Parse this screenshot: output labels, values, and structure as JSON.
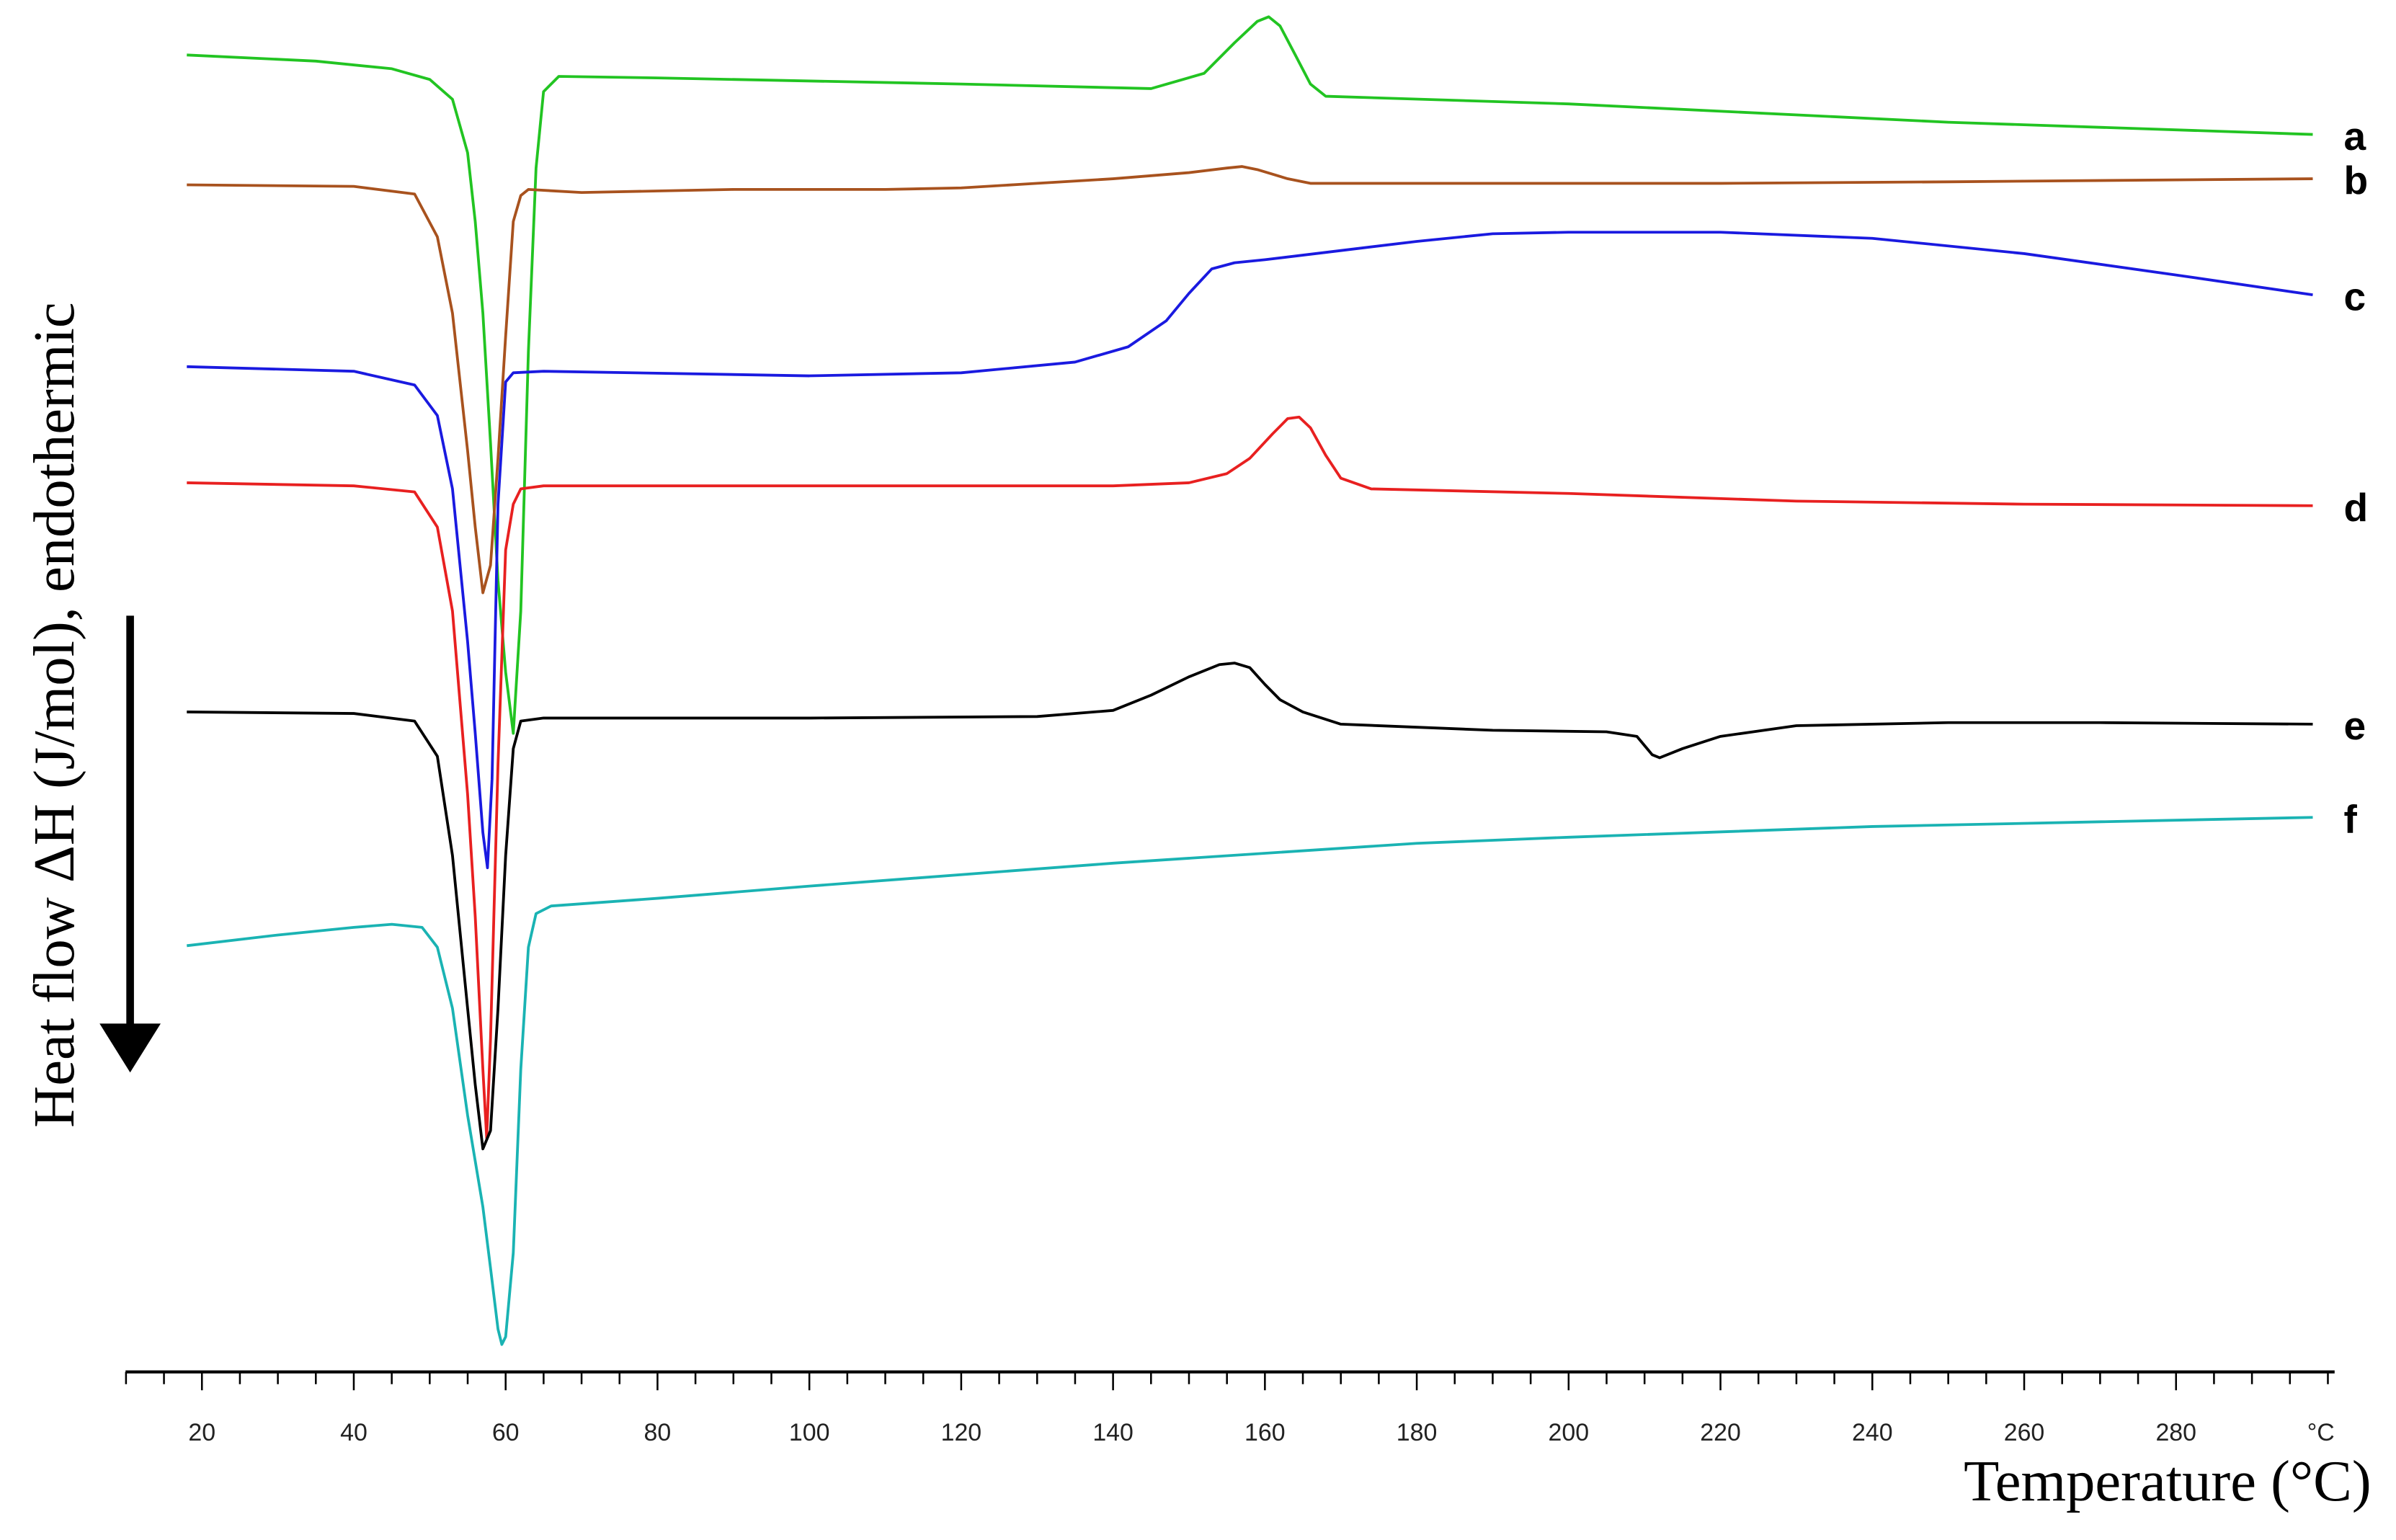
{
  "chart_data": {
    "type": "line",
    "xlabel": "Temperature (°C)",
    "ylabel": "Heat flow ΔH (J/mol), endothermic",
    "x_unit_tick_label": "°C",
    "xlim": [
      10,
      300
    ],
    "x_ticks": [
      20,
      40,
      60,
      80,
      100,
      120,
      140,
      160,
      180,
      200,
      220,
      240,
      260,
      280
    ],
    "grid": false,
    "legend": "none (curves labelled at right end)",
    "y_direction_arrow": "down",
    "series": [
      {
        "name": "a",
        "color": "#22c422",
        "points": [
          [
            18,
            36
          ],
          [
            35,
            40
          ],
          [
            45,
            45
          ],
          [
            50,
            52
          ],
          [
            53,
            65
          ],
          [
            55,
            100
          ],
          [
            56,
            145
          ],
          [
            57,
            205
          ],
          [
            58,
            290
          ],
          [
            59,
            380
          ],
          [
            60,
            440
          ],
          [
            61,
            480
          ],
          [
            62,
            400
          ],
          [
            63,
            230
          ],
          [
            64,
            110
          ],
          [
            65,
            60
          ],
          [
            67,
            50
          ],
          [
            80,
            51
          ],
          [
            120,
            55
          ],
          [
            145,
            58
          ],
          [
            152,
            48
          ],
          [
            156,
            28
          ],
          [
            159,
            14
          ],
          [
            160.5,
            11
          ],
          [
            162,
            17
          ],
          [
            164,
            36
          ],
          [
            166,
            55
          ],
          [
            168,
            63
          ],
          [
            200,
            68
          ],
          [
            250,
            80
          ],
          [
            298,
            88
          ]
        ]
      },
      {
        "name": "b",
        "color": "#a8521e",
        "points": [
          [
            18,
            121
          ],
          [
            40,
            122
          ],
          [
            48,
            127
          ],
          [
            51,
            155
          ],
          [
            53,
            205
          ],
          [
            55,
            295
          ],
          [
            56,
            345
          ],
          [
            57,
            388
          ],
          [
            58,
            370
          ],
          [
            59,
            300
          ],
          [
            60,
            220
          ],
          [
            61,
            145
          ],
          [
            62,
            128
          ],
          [
            63,
            124
          ],
          [
            70,
            126
          ],
          [
            80,
            125
          ],
          [
            90,
            124
          ],
          [
            100,
            124
          ],
          [
            110,
            124
          ],
          [
            120,
            123
          ],
          [
            130,
            120
          ],
          [
            140,
            117
          ],
          [
            150,
            113
          ],
          [
            155,
            110
          ],
          [
            157,
            109
          ],
          [
            159,
            111
          ],
          [
            161,
            114
          ],
          [
            163,
            117
          ],
          [
            166,
            120
          ],
          [
            180,
            120
          ],
          [
            200,
            120
          ],
          [
            220,
            120
          ],
          [
            250,
            119
          ],
          [
            298,
            117
          ]
        ]
      },
      {
        "name": "c",
        "color": "#1a1ae0",
        "points": [
          [
            18,
            240
          ],
          [
            40,
            243
          ],
          [
            48,
            252
          ],
          [
            51,
            272
          ],
          [
            53,
            320
          ],
          [
            55,
            420
          ],
          [
            56,
            480
          ],
          [
            57,
            545
          ],
          [
            57.6,
            568
          ],
          [
            58.2,
            510
          ],
          [
            59,
            330
          ],
          [
            60,
            250
          ],
          [
            61,
            244
          ],
          [
            65,
            243
          ],
          [
            100,
            246
          ],
          [
            120,
            244
          ],
          [
            135,
            237
          ],
          [
            142,
            227
          ],
          [
            147,
            210
          ],
          [
            150,
            192
          ],
          [
            153,
            176
          ],
          [
            156,
            172
          ],
          [
            160,
            170
          ],
          [
            170,
            164
          ],
          [
            180,
            158
          ],
          [
            190,
            153
          ],
          [
            200,
            152
          ],
          [
            220,
            152
          ],
          [
            240,
            156
          ],
          [
            260,
            166
          ],
          [
            280,
            180
          ],
          [
            298,
            193
          ]
        ]
      },
      {
        "name": "d",
        "color": "#e82020",
        "points": [
          [
            18,
            316
          ],
          [
            40,
            318
          ],
          [
            48,
            322
          ],
          [
            51,
            345
          ],
          [
            53,
            400
          ],
          [
            55,
            520
          ],
          [
            56,
            600
          ],
          [
            57,
            700
          ],
          [
            57.5,
            745
          ],
          [
            58,
            680
          ],
          [
            59,
            500
          ],
          [
            60,
            360
          ],
          [
            61,
            330
          ],
          [
            62,
            320
          ],
          [
            65,
            318
          ],
          [
            100,
            318
          ],
          [
            140,
            318
          ],
          [
            150,
            316
          ],
          [
            155,
            310
          ],
          [
            158,
            300
          ],
          [
            161,
            284
          ],
          [
            163,
            274
          ],
          [
            164.5,
            273
          ],
          [
            166,
            280
          ],
          [
            168,
            298
          ],
          [
            170,
            313
          ],
          [
            174,
            320
          ],
          [
            200,
            323
          ],
          [
            230,
            328
          ],
          [
            260,
            330
          ],
          [
            298,
            331
          ]
        ]
      },
      {
        "name": "e",
        "color": "#000000",
        "points": [
          [
            18,
            466
          ],
          [
            40,
            467
          ],
          [
            48,
            472
          ],
          [
            51,
            495
          ],
          [
            53,
            560
          ],
          [
            55,
            660
          ],
          [
            56,
            710
          ],
          [
            57,
            752
          ],
          [
            58,
            740
          ],
          [
            59,
            660
          ],
          [
            60,
            560
          ],
          [
            61,
            490
          ],
          [
            62,
            472
          ],
          [
            65,
            470
          ],
          [
            100,
            470
          ],
          [
            130,
            469
          ],
          [
            140,
            465
          ],
          [
            145,
            455
          ],
          [
            150,
            443
          ],
          [
            154,
            435
          ],
          [
            156,
            434
          ],
          [
            158,
            437
          ],
          [
            160,
            448
          ],
          [
            162,
            458
          ],
          [
            165,
            466
          ],
          [
            170,
            474
          ],
          [
            190,
            478
          ],
          [
            205,
            479
          ],
          [
            209,
            482
          ],
          [
            211,
            494
          ],
          [
            212,
            496
          ],
          [
            215,
            490
          ],
          [
            220,
            482
          ],
          [
            230,
            475
          ],
          [
            250,
            473
          ],
          [
            270,
            473
          ],
          [
            298,
            474
          ]
        ]
      },
      {
        "name": "f",
        "color": "#1ab3b3",
        "points": [
          [
            18,
            619
          ],
          [
            30,
            612
          ],
          [
            40,
            607
          ],
          [
            45,
            605
          ],
          [
            49,
            607
          ],
          [
            51,
            620
          ],
          [
            53,
            660
          ],
          [
            55,
            730
          ],
          [
            57,
            790
          ],
          [
            58,
            830
          ],
          [
            59,
            870
          ],
          [
            59.5,
            880
          ],
          [
            60,
            875
          ],
          [
            61,
            820
          ],
          [
            62,
            700
          ],
          [
            63,
            620
          ],
          [
            64,
            598
          ],
          [
            66,
            593
          ],
          [
            80,
            588
          ],
          [
            100,
            580
          ],
          [
            140,
            565
          ],
          [
            180,
            552
          ],
          [
            200,
            548
          ],
          [
            240,
            541
          ],
          [
            298,
            535
          ]
        ]
      }
    ]
  }
}
